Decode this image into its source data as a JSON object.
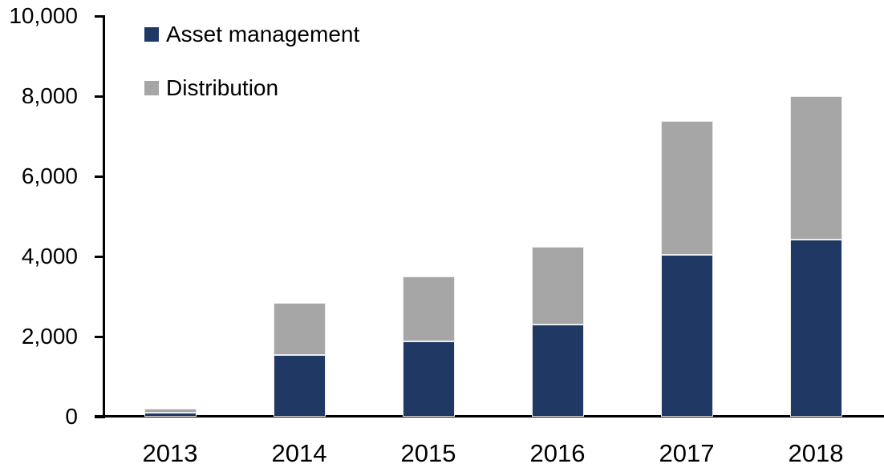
{
  "chart_data": {
    "type": "bar",
    "subtype": "stacked-vertical",
    "title": "",
    "xlabel": "",
    "ylabel": "",
    "categories": [
      "2013",
      "2014",
      "2015",
      "2016",
      "2017",
      "2018"
    ],
    "series": [
      {
        "name": "Asset management",
        "color": "#1f3864",
        "values": [
          100,
          1550,
          1880,
          2300,
          4050,
          4420
        ]
      },
      {
        "name": "Distribution",
        "color": "#a6a6a6",
        "values": [
          100,
          1300,
          1620,
          1950,
          3330,
          3580
        ]
      }
    ],
    "stacked_totals": [
      200,
      2850,
      3500,
      4250,
      7380,
      8000
    ],
    "ylim": [
      0,
      10000
    ],
    "ytick_interval": 2000,
    "yticks": [
      {
        "value": 0,
        "label": "0"
      },
      {
        "value": 2000,
        "label": "2,000"
      },
      {
        "value": 4000,
        "label": "4,000"
      },
      {
        "value": 6000,
        "label": "6,000"
      },
      {
        "value": 8000,
        "label": "8,000"
      },
      {
        "value": 10000,
        "label": "10,000"
      }
    ],
    "grid": false,
    "legend_position": "top-left-inside",
    "axis_color": "#000000",
    "background_color": "#ffffff"
  }
}
